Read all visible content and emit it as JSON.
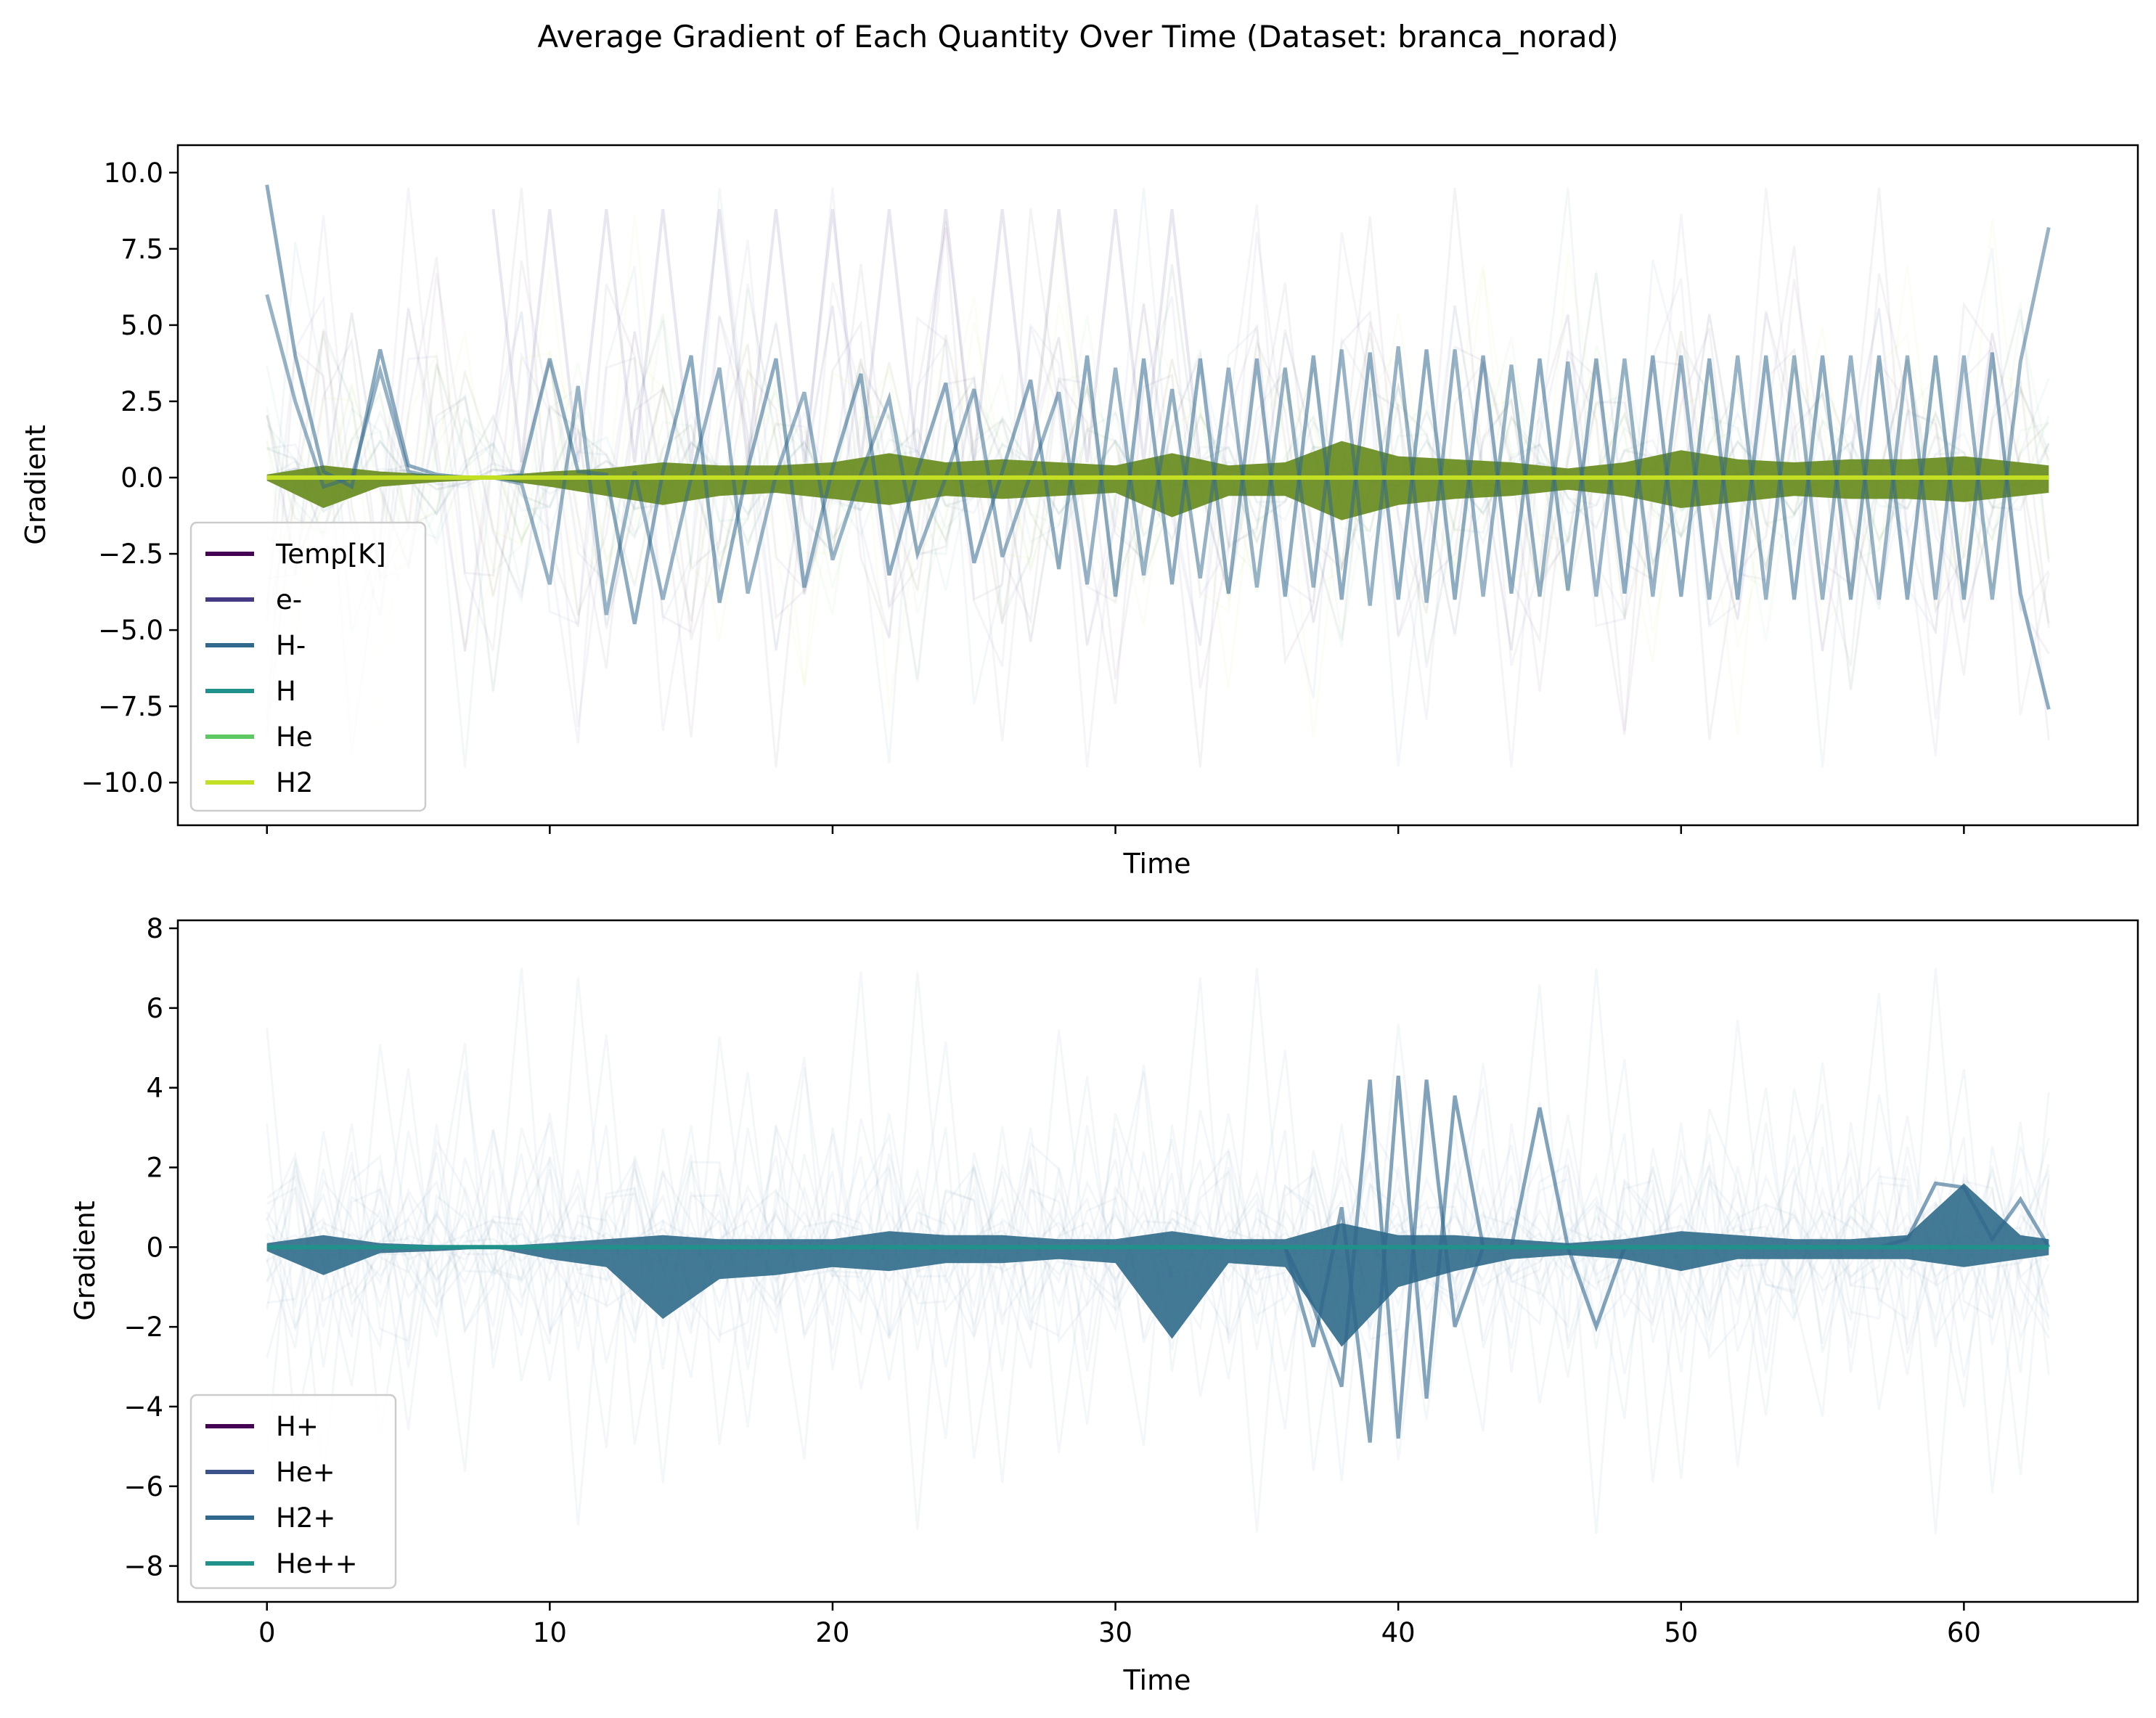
{
  "title": "Average Gradient of Each Quantity Over Time (Dataset: branca_norad)",
  "chart_data": [
    {
      "type": "line",
      "panel": "top",
      "xlabel": "Time",
      "ylabel": "Gradient",
      "xlim": [
        -3.15,
        66.15
      ],
      "ylim": [
        -11.4,
        10.9
      ],
      "xticks": [
        0,
        10,
        20,
        30,
        40,
        50,
        60
      ],
      "show_xtick_labels": false,
      "yticks": [
        10.0,
        7.5,
        5.0,
        2.5,
        0.0,
        -2.5,
        -5.0,
        -7.5,
        -10.0
      ],
      "ytick_labels": [
        "10.0",
        "7.5",
        "5.0",
        "2.5",
        "0.0",
        "−2.5",
        "−5.0",
        "−7.5",
        "−10.0"
      ],
      "grid": false,
      "legend_position": "lower-left",
      "series": [
        {
          "name": "Temp[K]",
          "color": "#440154"
        },
        {
          "name": "e-",
          "color": "#443983"
        },
        {
          "name": "H-",
          "color": "#31688e"
        },
        {
          "name": "H",
          "color": "#21918c"
        },
        {
          "name": "He",
          "color": "#5ec962"
        },
        {
          "name": "H2",
          "color": "#c2df23"
        }
      ],
      "band_envelope": {
        "x": [
          0,
          2,
          4,
          6,
          8,
          10,
          12,
          14,
          16,
          18,
          20,
          22,
          24,
          26,
          28,
          30,
          32,
          34,
          36,
          38,
          40,
          42,
          44,
          46,
          48,
          50,
          52,
          54,
          56,
          58,
          60,
          62,
          63
        ],
        "upper": [
          0.1,
          0.4,
          0.2,
          0.1,
          0.05,
          0.2,
          0.3,
          0.5,
          0.4,
          0.4,
          0.5,
          0.8,
          0.5,
          0.6,
          0.5,
          0.4,
          0.8,
          0.4,
          0.5,
          1.2,
          0.7,
          0.6,
          0.5,
          0.3,
          0.5,
          0.9,
          0.6,
          0.5,
          0.6,
          0.6,
          0.7,
          0.5,
          0.4
        ],
        "lower": [
          -0.1,
          -1.0,
          -0.3,
          -0.15,
          -0.05,
          -0.3,
          -0.6,
          -0.9,
          -0.6,
          -0.5,
          -0.7,
          -0.9,
          -0.6,
          -0.7,
          -0.6,
          -0.5,
          -1.3,
          -0.6,
          -0.6,
          -1.4,
          -0.9,
          -0.7,
          -0.6,
          -0.4,
          -0.6,
          -1.0,
          -0.8,
          -0.6,
          -0.7,
          -0.7,
          -0.8,
          -0.6,
          -0.5
        ]
      },
      "zigzag": {
        "x": [
          0,
          1,
          2,
          3,
          4,
          5,
          6,
          7,
          8,
          9,
          10,
          11,
          12,
          13,
          14,
          15,
          16,
          17,
          18,
          19,
          20,
          21,
          22,
          23,
          24,
          25,
          26,
          27,
          28,
          29,
          30,
          31,
          32,
          33,
          34,
          35,
          36,
          37,
          38,
          39,
          40,
          41,
          42,
          43,
          44,
          45,
          46,
          47,
          48,
          49,
          50,
          51,
          52,
          53,
          54,
          55,
          56,
          57,
          58,
          59,
          60,
          61,
          62,
          63
        ],
        "a": [
          9.6,
          4.0,
          0.2,
          -0.3,
          4.2,
          0.4,
          0.1,
          0.0,
          0.0,
          0.1,
          3.9,
          0.2,
          0.1,
          -4.8,
          0.2,
          4.0,
          -4.1,
          0.3,
          3.9,
          -3.6,
          0.3,
          3.4,
          -3.2,
          0.2,
          3.1,
          -2.8,
          0.2,
          3.2,
          -3.0,
          4.0,
          -3.9,
          3.9,
          -3.5,
          3.9,
          -3.8,
          3.9,
          -3.9,
          4.0,
          -4.0,
          4.1,
          -4.0,
          4.2,
          -4.0,
          4.0,
          -3.8,
          3.9,
          -3.7,
          3.9,
          -3.8,
          4.0,
          -3.9,
          3.9,
          -4.0,
          4.0,
          -4.0,
          4.0,
          -4.0,
          4.0,
          -4.0,
          4.0,
          -4.0,
          4.1,
          -3.8,
          -7.6
        ],
        "b": [
          6.0,
          2.5,
          -0.3,
          0.0,
          3.5,
          0.2,
          0.0,
          0.0,
          0.0,
          -0.2,
          -3.5,
          3.0,
          -4.5,
          0.2,
          -4.0,
          0.0,
          3.6,
          -3.8,
          0.1,
          2.8,
          -2.7,
          0.1,
          2.6,
          -2.5,
          0.0,
          2.9,
          -2.6,
          0.1,
          2.8,
          -3.5,
          3.6,
          -3.2,
          2.9,
          -3.3,
          3.6,
          -3.6,
          3.6,
          -3.6,
          4.2,
          -4.2,
          4.3,
          -4.1,
          4.2,
          -3.9,
          3.7,
          -3.9,
          3.8,
          -3.9,
          3.9,
          -3.9,
          4.0,
          -4.0,
          4.0,
          -4.0,
          4.0,
          -4.0,
          4.0,
          -4.0,
          4.0,
          -4.0,
          4.0,
          -4.0,
          3.8,
          8.2
        ]
      }
    },
    {
      "type": "line",
      "panel": "bottom",
      "xlabel": "Time",
      "ylabel": "Gradient",
      "xlim": [
        -3.15,
        66.15
      ],
      "ylim": [
        -8.9,
        8.2
      ],
      "xticks": [
        0,
        10,
        20,
        30,
        40,
        50,
        60
      ],
      "xtick_labels": [
        "0",
        "10",
        "20",
        "30",
        "40",
        "50",
        "60"
      ],
      "yticks": [
        8,
        6,
        4,
        2,
        0,
        -2,
        -4,
        -6,
        -8
      ],
      "ytick_labels": [
        "8",
        "6",
        "4",
        "2",
        "0",
        "−2",
        "−4",
        "−6",
        "−8"
      ],
      "grid": false,
      "legend_position": "lower-left",
      "series": [
        {
          "name": "H+",
          "color": "#440154"
        },
        {
          "name": "He+",
          "color": "#3b528b"
        },
        {
          "name": "H2+",
          "color": "#31688e"
        },
        {
          "name": "He++",
          "color": "#21918c"
        }
      ],
      "band_envelope": {
        "x": [
          0,
          2,
          4,
          6,
          8,
          10,
          12,
          14,
          16,
          18,
          20,
          22,
          24,
          26,
          28,
          30,
          32,
          34,
          36,
          38,
          40,
          42,
          44,
          46,
          48,
          50,
          52,
          54,
          56,
          58,
          60,
          62,
          63
        ],
        "upper": [
          0.1,
          0.3,
          0.1,
          0.05,
          0.02,
          0.1,
          0.2,
          0.3,
          0.2,
          0.2,
          0.2,
          0.4,
          0.3,
          0.3,
          0.2,
          0.2,
          0.4,
          0.2,
          0.2,
          0.6,
          0.3,
          0.3,
          0.2,
          0.1,
          0.2,
          0.4,
          0.3,
          0.2,
          0.2,
          0.3,
          1.6,
          0.3,
          0.2
        ],
        "lower": [
          -0.1,
          -0.7,
          -0.15,
          -0.1,
          -0.02,
          -0.3,
          -0.5,
          -1.8,
          -0.8,
          -0.7,
          -0.5,
          -0.6,
          -0.4,
          -0.4,
          -0.3,
          -0.4,
          -2.3,
          -0.4,
          -0.5,
          -2.5,
          -1.0,
          -0.6,
          -0.3,
          -0.2,
          -0.3,
          -0.6,
          -0.3,
          -0.3,
          -0.3,
          -0.3,
          -0.5,
          -0.3,
          -0.2
        ]
      },
      "spikes": [
        {
          "x": [
            36,
            37,
            38,
            39,
            40,
            41,
            42,
            43
          ],
          "y": [
            0.0,
            -1.5,
            -3.5,
            4.2,
            -4.8,
            4.2,
            -2.0,
            0.0
          ]
        },
        {
          "x": [
            36,
            37,
            38,
            39,
            40,
            41,
            42,
            43
          ],
          "y": [
            0.0,
            -2.5,
            1.0,
            -4.9,
            4.3,
            -3.8,
            3.8,
            0.0
          ]
        },
        {
          "x": [
            44,
            45,
            46,
            47,
            48,
            49,
            50,
            51
          ],
          "y": [
            0.0,
            3.5,
            0.0,
            -2.0,
            0.0,
            0.0,
            0.0,
            0.0
          ]
        },
        {
          "x": [
            57,
            58,
            59,
            60,
            61,
            62,
            63
          ],
          "y": [
            0.0,
            0.2,
            1.6,
            1.5,
            0.2,
            1.2,
            0.0
          ]
        }
      ]
    }
  ]
}
